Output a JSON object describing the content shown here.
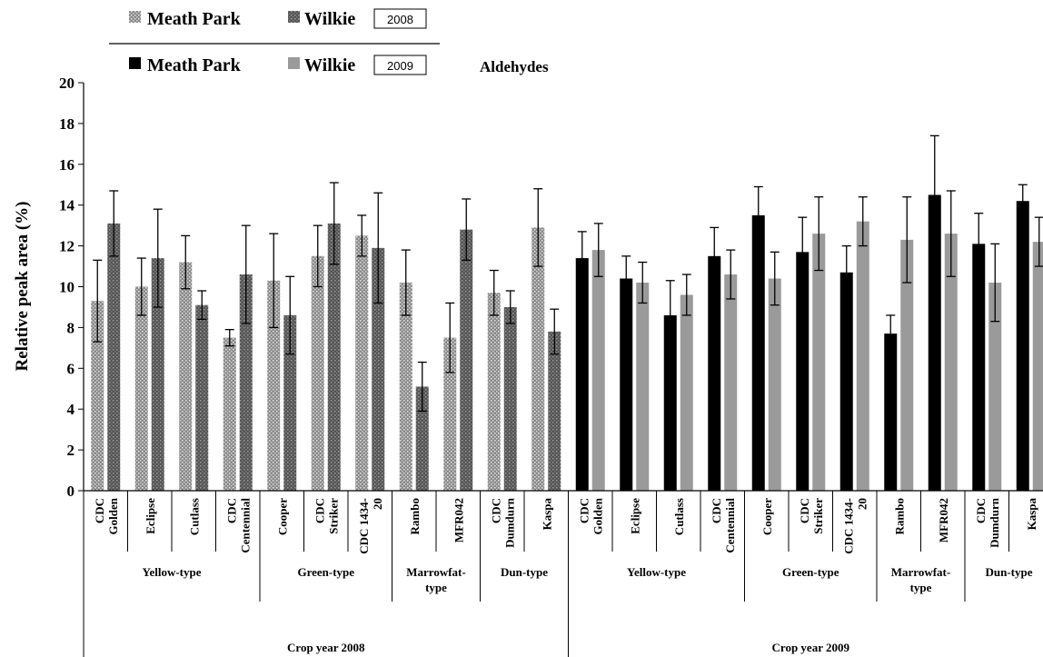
{
  "chart_data": {
    "type": "bar",
    "title": "Aldehydes",
    "ylabel": "Relative peak area (%)",
    "xlabel": "",
    "ylim": [
      0,
      20
    ],
    "yticks": [
      0,
      2,
      4,
      6,
      8,
      10,
      12,
      14,
      16,
      18,
      20
    ],
    "grid": false,
    "legend": [
      {
        "year_label": "2008",
        "entries": [
          {
            "name": "Meath Park",
            "color": "#8f8f8f",
            "pattern": "dots-light"
          },
          {
            "name": "Wilkie",
            "color": "#5f5f5f",
            "pattern": "dots-dark"
          }
        ]
      },
      {
        "year_label": "2009",
        "entries": [
          {
            "name": "Meath Park",
            "color": "#000000",
            "pattern": "solid"
          },
          {
            "name": "Wilkie",
            "color": "#9a9a9a",
            "pattern": "solid"
          }
        ]
      }
    ],
    "years": [
      {
        "label": "Crop year 2008",
        "groups": [
          {
            "label": [
              "Yellow-type"
            ],
            "categories": [
              [
                "CDC",
                "Golden"
              ],
              [
                "Eclipse"
              ],
              [
                "Cutlass"
              ],
              [
                "CDC",
                "Centennial"
              ]
            ]
          },
          {
            "label": [
              "Green-type"
            ],
            "categories": [
              [
                "Cooper"
              ],
              [
                "CDC",
                "Striker"
              ],
              [
                "CDC 1434-",
                "20"
              ]
            ]
          },
          {
            "label": [
              "Marrowfat-",
              "type"
            ],
            "categories": [
              [
                "Rambo"
              ],
              [
                "MFR042"
              ]
            ]
          },
          {
            "label": [
              "Dun-type"
            ],
            "categories": [
              [
                "CDC",
                "Dumdurn"
              ],
              [
                "Kaspa"
              ]
            ]
          }
        ],
        "series": [
          {
            "name": "Meath Park",
            "values": [
              9.3,
              10.0,
              11.2,
              7.5,
              10.3,
              11.5,
              12.5,
              10.2,
              7.5,
              9.7,
              12.9
            ],
            "errors": [
              2.0,
              1.4,
              1.3,
              0.4,
              2.3,
              1.5,
              1.0,
              1.6,
              1.7,
              1.1,
              1.9
            ]
          },
          {
            "name": "Wilkie",
            "values": [
              13.1,
              11.4,
              9.1,
              10.6,
              8.6,
              13.1,
              11.9,
              5.1,
              12.8,
              9.0,
              7.8
            ],
            "errors": [
              1.6,
              2.4,
              0.7,
              2.4,
              1.9,
              2.0,
              2.7,
              1.2,
              1.5,
              0.8,
              1.1
            ]
          }
        ]
      },
      {
        "label": "Crop year 2009",
        "groups": [
          {
            "label": [
              "Yellow-type"
            ],
            "categories": [
              [
                "CDC",
                "Golden"
              ],
              [
                "Eclipse"
              ],
              [
                "Cutlass"
              ],
              [
                "CDC",
                "Centennial"
              ]
            ]
          },
          {
            "label": [
              "Green-type"
            ],
            "categories": [
              [
                "Cooper"
              ],
              [
                "CDC",
                "Striker"
              ],
              [
                "CDC 1434-",
                "20"
              ]
            ]
          },
          {
            "label": [
              "Marrowfat-",
              "type"
            ],
            "categories": [
              [
                "Rambo"
              ],
              [
                "MFR042"
              ]
            ]
          },
          {
            "label": [
              "Dun-type"
            ],
            "categories": [
              [
                "CDC",
                "Dumdurn"
              ],
              [
                "Kaspa"
              ]
            ]
          }
        ],
        "series": [
          {
            "name": "Meath Park",
            "values": [
              11.4,
              10.4,
              8.6,
              11.5,
              13.5,
              11.7,
              10.7,
              7.7,
              14.5,
              12.1,
              14.2
            ],
            "errors": [
              1.3,
              1.1,
              1.7,
              1.4,
              1.4,
              1.7,
              1.3,
              0.9,
              2.9,
              1.5,
              0.8
            ]
          },
          {
            "name": "Wilkie",
            "values": [
              11.8,
              10.2,
              9.6,
              10.6,
              10.4,
              12.6,
              13.2,
              12.3,
              12.6,
              10.2,
              12.2
            ],
            "errors": [
              1.3,
              1.0,
              1.0,
              1.2,
              1.3,
              1.8,
              1.2,
              2.1,
              2.1,
              1.9,
              1.2
            ]
          }
        ]
      }
    ]
  }
}
